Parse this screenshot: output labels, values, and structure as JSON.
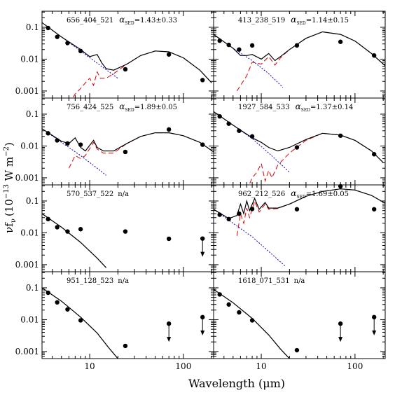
{
  "figure": {
    "xlabel": "Wavelength (μm)",
    "ylabel": "νf",
    "ylabel_sub": "ν",
    "ylabel_unit": "(10",
    "ylabel_exp": "−13",
    "ylabel_unit2": " W m",
    "ylabel_exp2": "−2",
    "ylabel_close": ")"
  },
  "colors": {
    "frame": "#000000",
    "total_model": "#000000",
    "photosphere": "#0000cc",
    "dust_component": "#dd0000",
    "data_points": "#000000"
  },
  "axes": {
    "x_scale": "log",
    "y_scale": "log",
    "xlim": [
      3.1,
      210
    ],
    "ylim": [
      0.0006,
      0.32
    ],
    "x_tick_labels": [
      {
        "value": 10,
        "label": "10"
      },
      {
        "value": 100,
        "label": "100"
      }
    ],
    "y_tick_labels": [
      {
        "value": 0.1,
        "label": "0.1"
      },
      {
        "value": 0.01,
        "label": "0.01"
      },
      {
        "value": 0.001,
        "label": "0.001"
      }
    ]
  },
  "chart_data": [
    {
      "type": "scatter",
      "row": 0,
      "col": 0,
      "object_id": "656_404_521",
      "alpha_text": "=1.43±0.33",
      "points": [
        [
          3.6,
          0.095
        ],
        [
          4.5,
          0.05
        ],
        [
          5.8,
          0.032
        ],
        [
          8.0,
          0.018
        ],
        [
          24,
          0.0048
        ],
        [
          70,
          0.014
        ],
        [
          160,
          0.0022
        ]
      ],
      "upper_limits": [],
      "photosphere": [
        [
          3.1,
          0.14
        ],
        [
          5,
          0.05
        ],
        [
          8,
          0.018
        ],
        [
          12,
          0.0075
        ],
        [
          20,
          0.0025
        ]
      ],
      "model_total": [
        [
          3.1,
          0.14
        ],
        [
          5,
          0.05
        ],
        [
          8,
          0.02
        ],
        [
          10,
          0.012
        ],
        [
          12,
          0.014
        ],
        [
          13.5,
          0.0075
        ],
        [
          15,
          0.005
        ],
        [
          18,
          0.0045
        ],
        [
          25,
          0.007
        ],
        [
          35,
          0.013
        ],
        [
          50,
          0.018
        ],
        [
          70,
          0.017
        ],
        [
          100,
          0.011
        ],
        [
          150,
          0.0045
        ],
        [
          200,
          0.0018
        ]
      ],
      "dust": [
        [
          6,
          0.0004
        ],
        [
          7,
          0.0008
        ],
        [
          8,
          0.0012
        ],
        [
          9,
          0.0018
        ],
        [
          10,
          0.0025
        ],
        [
          11,
          0.0015
        ],
        [
          12,
          0.004
        ],
        [
          13,
          0.0025
        ],
        [
          15,
          0.0025
        ],
        [
          18,
          0.0035
        ],
        [
          25,
          0.007
        ],
        [
          35,
          0.013
        ],
        [
          50,
          0.018
        ],
        [
          70,
          0.017
        ],
        [
          100,
          0.011
        ],
        [
          150,
          0.0045
        ],
        [
          200,
          0.0018
        ]
      ]
    },
    {
      "type": "scatter",
      "row": 0,
      "col": 1,
      "object_id": "413_238_519",
      "alpha_text": "=1.14±0.15",
      "points": [
        [
          3.6,
          0.038
        ],
        [
          4.5,
          0.028
        ],
        [
          5.8,
          0.02
        ],
        [
          8.0,
          0.027
        ],
        [
          24,
          0.027
        ],
        [
          70,
          0.035
        ],
        [
          160,
          0.013
        ]
      ],
      "upper_limits": [],
      "photosphere": [
        [
          3.1,
          0.06
        ],
        [
          5,
          0.022
        ],
        [
          8,
          0.009
        ],
        [
          12,
          0.0035
        ],
        [
          17,
          0.0013
        ]
      ],
      "model_total": [
        [
          3.1,
          0.06
        ],
        [
          5,
          0.022
        ],
        [
          6,
          0.013
        ],
        [
          7,
          0.013
        ],
        [
          8,
          0.014
        ],
        [
          10,
          0.01
        ],
        [
          12,
          0.015
        ],
        [
          14,
          0.009
        ],
        [
          16,
          0.012
        ],
        [
          20,
          0.02
        ],
        [
          30,
          0.045
        ],
        [
          45,
          0.072
        ],
        [
          70,
          0.06
        ],
        [
          100,
          0.037
        ],
        [
          150,
          0.015
        ],
        [
          210,
          0.0062
        ]
      ],
      "dust": [
        [
          5.5,
          0.001
        ],
        [
          7,
          0.003
        ],
        [
          8,
          0.008
        ],
        [
          10,
          0.007
        ],
        [
          12,
          0.012
        ],
        [
          14,
          0.0065
        ],
        [
          16,
          0.011
        ],
        [
          20,
          0.02
        ],
        [
          30,
          0.045
        ],
        [
          45,
          0.072
        ],
        [
          70,
          0.06
        ],
        [
          100,
          0.037
        ],
        [
          150,
          0.015
        ],
        [
          210,
          0.0062
        ]
      ]
    },
    {
      "type": "scatter",
      "row": 1,
      "col": 0,
      "object_id": "756_424_525",
      "alpha_text": "=1.89±0.05",
      "points": [
        [
          3.6,
          0.025
        ],
        [
          4.5,
          0.015
        ],
        [
          5.8,
          0.012
        ],
        [
          8.0,
          0.011
        ],
        [
          24,
          0.0065
        ],
        [
          70,
          0.033
        ],
        [
          160,
          0.011
        ]
      ],
      "upper_limits": [],
      "photosphere": [
        [
          3.1,
          0.035
        ],
        [
          5,
          0.013
        ],
        [
          8,
          0.005
        ],
        [
          12,
          0.002
        ],
        [
          15,
          0.0012
        ]
      ],
      "model_total": [
        [
          3.1,
          0.035
        ],
        [
          5,
          0.014
        ],
        [
          6,
          0.012
        ],
        [
          7,
          0.018
        ],
        [
          8,
          0.009
        ],
        [
          9,
          0.007
        ],
        [
          11,
          0.015
        ],
        [
          12,
          0.009
        ],
        [
          14,
          0.007
        ],
        [
          18,
          0.007
        ],
        [
          25,
          0.012
        ],
        [
          35,
          0.02
        ],
        [
          50,
          0.026
        ],
        [
          70,
          0.026
        ],
        [
          100,
          0.021
        ],
        [
          150,
          0.013
        ],
        [
          210,
          0.0065
        ]
      ],
      "dust": [
        [
          6,
          0.002
        ],
        [
          7,
          0.005
        ],
        [
          8,
          0.004
        ],
        [
          9,
          0.005
        ],
        [
          11,
          0.013
        ],
        [
          12,
          0.008
        ],
        [
          14,
          0.006
        ],
        [
          18,
          0.006
        ],
        [
          25,
          0.012
        ],
        [
          35,
          0.02
        ],
        [
          50,
          0.026
        ],
        [
          70,
          0.026
        ],
        [
          100,
          0.021
        ],
        [
          150,
          0.013
        ],
        [
          210,
          0.0065
        ]
      ]
    },
    {
      "type": "scatter",
      "row": 1,
      "col": 1,
      "object_id": "1927_584_533",
      "alpha_text": "=1.37±0.14",
      "points": [
        [
          3.6,
          0.085
        ],
        [
          4.5,
          0.05
        ],
        [
          5.8,
          0.03
        ],
        [
          8.0,
          0.02
        ],
        [
          24,
          0.009
        ],
        [
          70,
          0.021
        ],
        [
          160,
          0.0055
        ]
      ],
      "upper_limits": [],
      "photosphere": [
        [
          3.1,
          0.12
        ],
        [
          5,
          0.045
        ],
        [
          8,
          0.017
        ],
        [
          12,
          0.006
        ],
        [
          20,
          0.0015
        ]
      ],
      "model_total": [
        [
          3.1,
          0.12
        ],
        [
          5,
          0.045
        ],
        [
          8,
          0.018
        ],
        [
          10,
          0.013
        ],
        [
          12,
          0.009
        ],
        [
          15,
          0.007
        ],
        [
          20,
          0.009
        ],
        [
          30,
          0.016
        ],
        [
          45,
          0.025
        ],
        [
          70,
          0.022
        ],
        [
          100,
          0.015
        ],
        [
          150,
          0.007
        ],
        [
          200,
          0.003
        ]
      ],
      "dust": [
        [
          7,
          0.0004
        ],
        [
          8,
          0.001
        ],
        [
          9,
          0.0015
        ],
        [
          10,
          0.0028
        ],
        [
          11,
          0.0008
        ],
        [
          12,
          0.0017
        ],
        [
          13,
          0.001
        ],
        [
          15,
          0.0025
        ],
        [
          20,
          0.006
        ],
        [
          30,
          0.015
        ],
        [
          45,
          0.025
        ],
        [
          70,
          0.022
        ],
        [
          100,
          0.015
        ],
        [
          150,
          0.007
        ],
        [
          200,
          0.003
        ]
      ]
    },
    {
      "type": "scatter",
      "row": 2,
      "col": 0,
      "object_id": "570_537_522",
      "alpha_text": "n/a",
      "points": [
        [
          3.6,
          0.027
        ],
        [
          4.5,
          0.015
        ],
        [
          5.8,
          0.011
        ],
        [
          8.0,
          0.013
        ],
        [
          24,
          0.011
        ],
        [
          70,
          0.0065
        ]
      ],
      "upper_limits": [
        [
          160,
          0.0066
        ]
      ],
      "photosphere": [
        [
          3.1,
          0.04
        ],
        [
          5,
          0.015
        ],
        [
          8,
          0.005
        ],
        [
          12,
          0.0016
        ],
        [
          15,
          0.0008
        ]
      ],
      "model_total": [
        [
          3.1,
          0.04
        ],
        [
          5,
          0.015
        ],
        [
          8,
          0.005
        ],
        [
          12,
          0.0016
        ],
        [
          15,
          0.0008
        ]
      ],
      "dust": []
    },
    {
      "type": "scatter",
      "row": 2,
      "col": 1,
      "object_id": "962_212_526",
      "alpha_text": "=1.69±0.05",
      "points": [
        [
          3.6,
          0.037
        ],
        [
          4.5,
          0.027
        ],
        [
          5.8,
          0.04
        ],
        [
          8.0,
          0.056
        ],
        [
          24,
          0.055
        ],
        [
          70,
          0.29
        ],
        [
          160,
          0.055
        ]
      ],
      "upper_limits": [],
      "photosphere": [
        [
          3.1,
          0.055
        ],
        [
          5,
          0.02
        ],
        [
          8,
          0.0075
        ],
        [
          12,
          0.0026
        ],
        [
          18,
          0.0009
        ]
      ],
      "model_total": [
        [
          3.1,
          0.055
        ],
        [
          4.5,
          0.028
        ],
        [
          5.5,
          0.035
        ],
        [
          6,
          0.08
        ],
        [
          6.5,
          0.04
        ],
        [
          7,
          0.1
        ],
        [
          7.5,
          0.05
        ],
        [
          8.5,
          0.12
        ],
        [
          9.5,
          0.055
        ],
        [
          11,
          0.09
        ],
        [
          12,
          0.06
        ],
        [
          15,
          0.06
        ],
        [
          20,
          0.08
        ],
        [
          30,
          0.14
        ],
        [
          45,
          0.2
        ],
        [
          70,
          0.24
        ],
        [
          100,
          0.22
        ],
        [
          150,
          0.15
        ],
        [
          210,
          0.085
        ]
      ],
      "dust": [
        [
          5.5,
          0.008
        ],
        [
          6,
          0.04
        ],
        [
          6.5,
          0.02
        ],
        [
          7,
          0.06
        ],
        [
          7.5,
          0.03
        ],
        [
          8.5,
          0.1
        ],
        [
          9.5,
          0.045
        ],
        [
          11,
          0.08
        ],
        [
          12,
          0.055
        ],
        [
          15,
          0.058
        ],
        [
          20,
          0.08
        ],
        [
          30,
          0.14
        ],
        [
          45,
          0.2
        ],
        [
          70,
          0.24
        ],
        [
          100,
          0.22
        ],
        [
          150,
          0.15
        ],
        [
          210,
          0.085
        ]
      ]
    },
    {
      "type": "scatter",
      "row": 3,
      "col": 0,
      "object_id": "951_128_523",
      "alpha_text": "n/a",
      "points": [
        [
          3.6,
          0.07
        ],
        [
          4.5,
          0.035
        ],
        [
          5.8,
          0.021
        ],
        [
          8.0,
          0.0095
        ],
        [
          24,
          0.0015
        ]
      ],
      "upper_limits": [
        [
          70,
          0.0075
        ],
        [
          160,
          0.012
        ]
      ],
      "photosphere": [
        [
          3.1,
          0.1
        ],
        [
          5,
          0.038
        ],
        [
          8,
          0.012
        ],
        [
          12,
          0.0038
        ],
        [
          16,
          0.0013
        ],
        [
          20,
          0.0006
        ]
      ],
      "model_total": [
        [
          3.1,
          0.1
        ],
        [
          5,
          0.038
        ],
        [
          8,
          0.012
        ],
        [
          12,
          0.0038
        ],
        [
          16,
          0.0013
        ],
        [
          20,
          0.0006
        ]
      ],
      "dust": []
    },
    {
      "type": "scatter",
      "row": 3,
      "col": 1,
      "object_id": "1618_071_531",
      "alpha_text": "n/a",
      "points": [
        [
          3.6,
          0.062
        ],
        [
          4.5,
          0.03
        ],
        [
          5.8,
          0.017
        ],
        [
          8.0,
          0.0095
        ],
        [
          24,
          0.0011
        ]
      ],
      "upper_limits": [
        [
          70,
          0.0075
        ],
        [
          160,
          0.012
        ]
      ],
      "photosphere": [
        [
          3.1,
          0.09
        ],
        [
          5,
          0.034
        ],
        [
          8,
          0.011
        ],
        [
          12,
          0.0033
        ],
        [
          16,
          0.0012
        ],
        [
          20,
          0.0006
        ]
      ],
      "model_total": [
        [
          3.1,
          0.09
        ],
        [
          5,
          0.034
        ],
        [
          8,
          0.011
        ],
        [
          12,
          0.0033
        ],
        [
          16,
          0.0012
        ],
        [
          20,
          0.0006
        ]
      ],
      "dust": []
    }
  ]
}
